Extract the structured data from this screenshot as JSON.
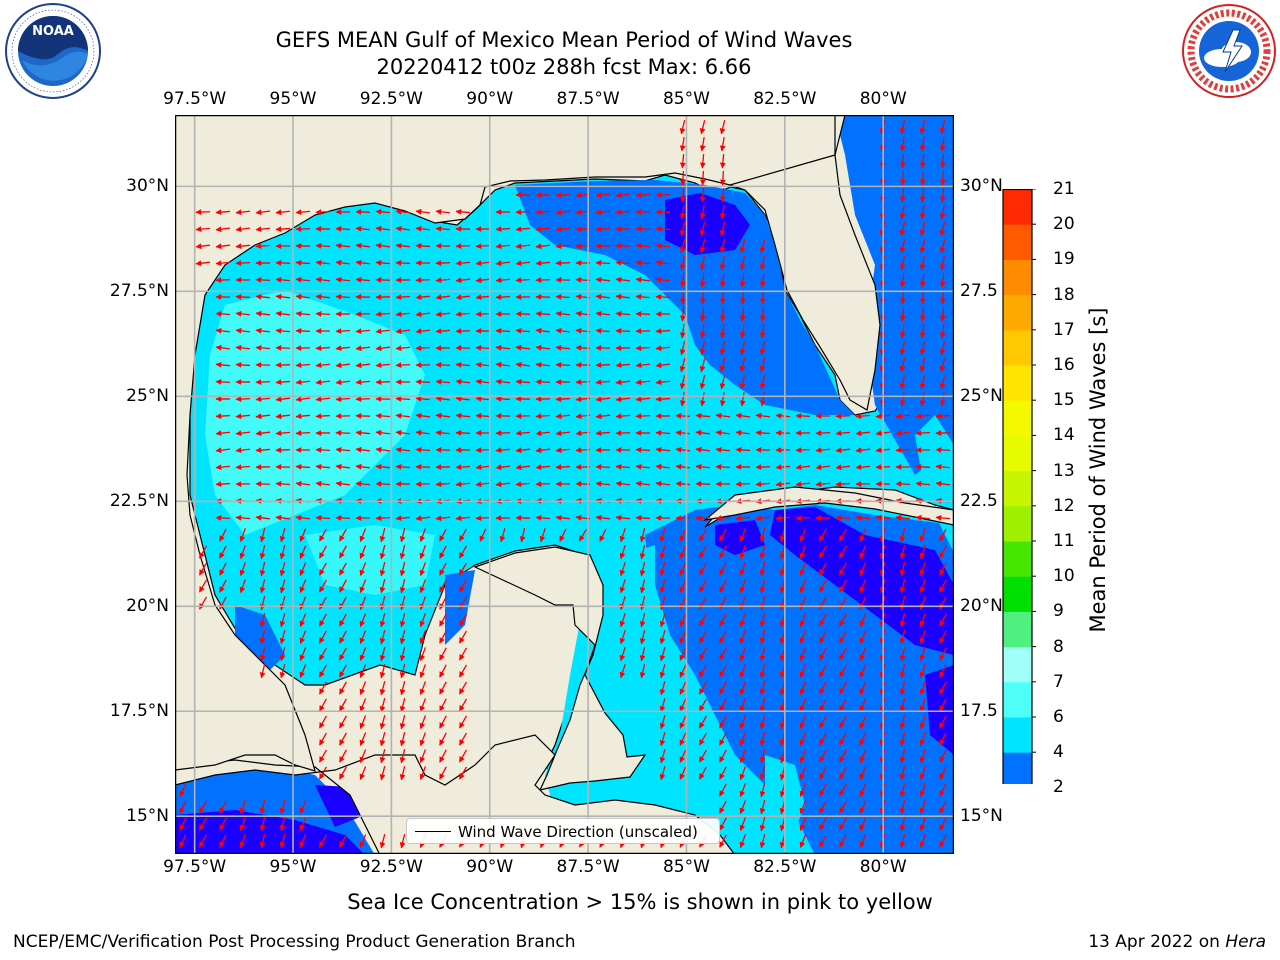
{
  "title": {
    "line1": "GEFS MEAN Gulf of Mexico Mean Period of Wind Waves",
    "line2": "20220412 t00z 288h fcst   Max: 6.66"
  },
  "logos": {
    "noaa": {
      "label": "NOAA",
      "ring_text": "NATIONAL OCEANIC AND ATMOSPHERIC ADMINISTRATION · U.S. DEPARTMENT OF COMMERCE"
    },
    "nws": {
      "ring_text": "NATIONAL WEATHER SERVICE"
    }
  },
  "map": {
    "x_ticks": [
      "97.5°W",
      "95°W",
      "92.5°W",
      "90°W",
      "87.5°W",
      "85°W",
      "82.5°W",
      "80°W"
    ],
    "x_tick_values": [
      -97.5,
      -95,
      -92.5,
      -90,
      -87.5,
      -85,
      -82.5,
      -80
    ],
    "y_ticks_left": [
      "15°N",
      "17.5°N",
      "20°N",
      "22.5°N",
      "25°N",
      "27.5°N",
      "30°N"
    ],
    "y_ticks_right": [
      "15°N",
      "17.5",
      "20°N",
      "22.5",
      "25°N",
      "27.5",
      "30°N"
    ],
    "y_tick_values": [
      15,
      17.5,
      20,
      22.5,
      25,
      27.5,
      30
    ],
    "lon_range": [
      -98,
      -78.2
    ],
    "lat_range": [
      14.1,
      31.7
    ],
    "land_color": "#efecdb",
    "arrow_color": "#ff0000",
    "grid_color": "#b3b3b3"
  },
  "legend": {
    "label": "Wind Wave Direction (unscaled)"
  },
  "colorbar": {
    "title": "Mean Period of Wind Waves [s]",
    "levels": [
      "2",
      "4",
      "6",
      "7",
      "8",
      "9",
      "10",
      "11",
      "12",
      "13",
      "14",
      "15",
      "16",
      "17",
      "18",
      "19",
      "20",
      "21"
    ],
    "colors": [
      "#0072ff",
      "#00e5ff",
      "#4dfff8",
      "#a0fff8",
      "#4ff07f",
      "#00e000",
      "#47e600",
      "#9eef00",
      "#c8f500",
      "#e6fa00",
      "#f4f900",
      "#ffe600",
      "#ffc800",
      "#ffaa00",
      "#ff8c00",
      "#ff5a00",
      "#ff2a00"
    ],
    "extend_color": "#1a00ff"
  },
  "note": "Sea Ice Concentration > 15% is shown in pink to yellow",
  "footer": {
    "left": "NCEP/EMC/Verification Post Processing Product Generation Branch",
    "right_prefix": "13 Apr 2022 on ",
    "right_host": "Hera"
  }
}
